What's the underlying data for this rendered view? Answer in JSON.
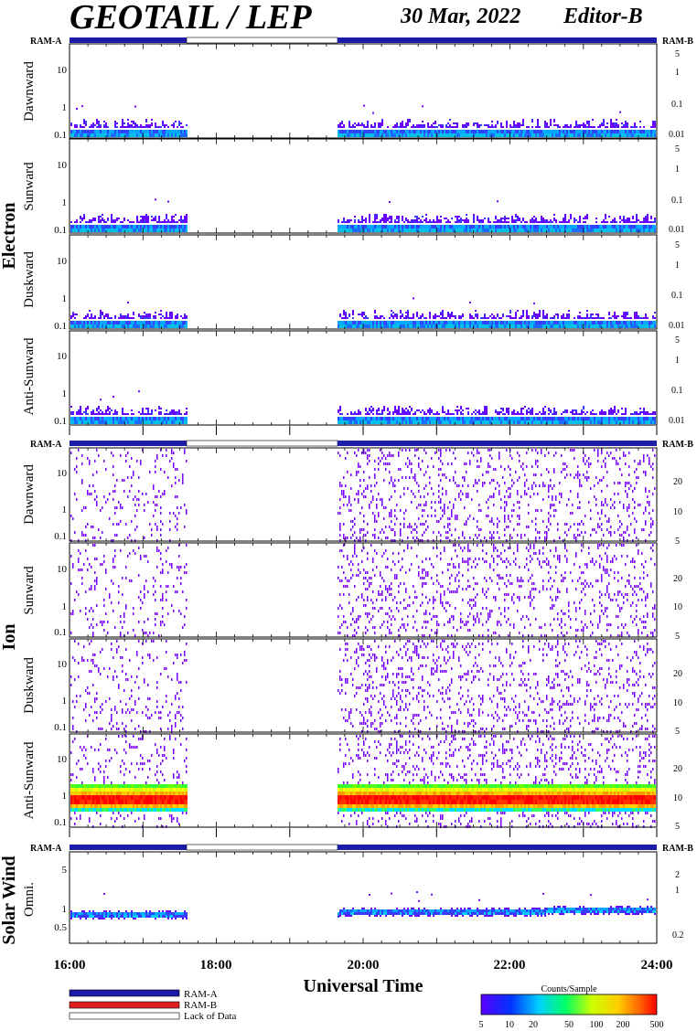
{
  "header": {
    "title": "GEOTAIL / LEP",
    "date": "30 Mar, 2022",
    "editor": "Editor-B"
  },
  "groups": {
    "electron": "Electron",
    "ion": "Ion",
    "solar_wind": "Solar Wind"
  },
  "ram_labels": {
    "left": "RAM-A",
    "right": "RAM-B"
  },
  "x_axis": {
    "label": "Universal Time",
    "ticks": [
      "16:00",
      "18:00",
      "20:00",
      "22:00",
      "24:00"
    ],
    "range_hours": [
      16,
      24
    ]
  },
  "legend": {
    "ram_a": "RAM-A",
    "ram_b": "RAM-B",
    "lack": "Lack of Data",
    "colors": {
      "ram_a": "#1c1ca8",
      "ram_b": "#e02020",
      "lack": "#ffffff"
    }
  },
  "colorbar": {
    "title": "Counts/Sample",
    "ticks": [
      "5",
      "10",
      "20",
      "50",
      "100",
      "200",
      "500"
    ],
    "colors": [
      "#5a00ff",
      "#0033ff",
      "#00d0ff",
      "#00ff66",
      "#ccff00",
      "#ffcc00",
      "#ff6600",
      "#ff0000"
    ]
  },
  "chart_data": [
    {
      "type": "heatmap",
      "species": "Electron",
      "direction": "Dawnward",
      "xlim": [
        16,
        24
      ],
      "ylim": [
        0.08,
        40
      ],
      "yscale": "log",
      "left_ticks": [
        "0.1",
        "1",
        "10"
      ],
      "right_ticks": [
        "0.01",
        "0.1",
        "1",
        "5"
      ],
      "data_gaps": [
        [
          17.6,
          19.65
        ]
      ],
      "ram_bar": [
        {
          "from": 16,
          "to": 17.6,
          "state": "RAM-A"
        },
        {
          "from": 17.6,
          "to": 19.65,
          "state": "Lack of Data"
        },
        {
          "from": 19.65,
          "to": 24,
          "state": "RAM-A"
        }
      ],
      "note": "low-energy band up to ~0.4, mostly blue-purple"
    },
    {
      "type": "heatmap",
      "species": "Electron",
      "direction": "Sunward",
      "xlim": [
        16,
        24
      ],
      "ylim": [
        0.08,
        40
      ],
      "yscale": "log",
      "left_ticks": [
        "0.1",
        "1",
        "10"
      ],
      "right_ticks": [
        "0.01",
        "0.1",
        "1",
        "5"
      ],
      "data_gaps": [
        [
          17.6,
          19.65
        ]
      ]
    },
    {
      "type": "heatmap",
      "species": "Electron",
      "direction": "Duskward",
      "xlim": [
        16,
        24
      ],
      "ylim": [
        0.08,
        40
      ],
      "yscale": "log",
      "left_ticks": [
        "0.1",
        "1",
        "10"
      ],
      "right_ticks": [
        "0.01",
        "0.1",
        "1",
        "5"
      ],
      "data_gaps": [
        [
          17.6,
          19.65
        ]
      ]
    },
    {
      "type": "heatmap",
      "species": "Electron",
      "direction": "Anti-Sunward",
      "xlim": [
        16,
        24
      ],
      "ylim": [
        0.08,
        40
      ],
      "yscale": "log",
      "left_ticks": [
        "0.1",
        "1",
        "10"
      ],
      "right_ticks": [
        "0.01",
        "0.1",
        "1",
        "5"
      ],
      "data_gaps": [
        [
          17.6,
          19.65
        ]
      ]
    },
    {
      "type": "heatmap",
      "species": "Ion",
      "direction": "Dawnward",
      "xlim": [
        16,
        24
      ],
      "ylim": [
        0.08,
        40
      ],
      "yscale": "log",
      "left_ticks": [
        "0.1",
        "1",
        "10"
      ],
      "right_ticks": [
        "5",
        "10",
        "20"
      ],
      "data_gaps": [
        [
          17.6,
          19.65
        ]
      ],
      "ram_bar": [
        {
          "from": 16,
          "to": 17.6,
          "state": "RAM-A"
        },
        {
          "from": 17.6,
          "to": 19.65,
          "state": "Lack of Data"
        },
        {
          "from": 19.65,
          "to": 24,
          "state": "RAM-A"
        }
      ],
      "note": "sparse purple speckle across all energies"
    },
    {
      "type": "heatmap",
      "species": "Ion",
      "direction": "Sunward",
      "xlim": [
        16,
        24
      ],
      "ylim": [
        0.08,
        40
      ],
      "yscale": "log",
      "left_ticks": [
        "0.1",
        "1",
        "10"
      ],
      "right_ticks": [
        "5",
        "10",
        "20"
      ],
      "data_gaps": [
        [
          17.6,
          19.65
        ]
      ]
    },
    {
      "type": "heatmap",
      "species": "Ion",
      "direction": "Duskward",
      "xlim": [
        16,
        24
      ],
      "ylim": [
        0.08,
        40
      ],
      "yscale": "log",
      "left_ticks": [
        "0.1",
        "1",
        "10"
      ],
      "right_ticks": [
        "5",
        "10",
        "20"
      ],
      "data_gaps": [
        [
          17.6,
          19.65
        ]
      ]
    },
    {
      "type": "heatmap",
      "species": "Ion",
      "direction": "Anti-Sunward",
      "xlim": [
        16,
        24
      ],
      "ylim": [
        0.08,
        40
      ],
      "yscale": "log",
      "left_ticks": [
        "0.1",
        "1",
        "10"
      ],
      "right_ticks": [
        "5",
        "10",
        "20"
      ],
      "data_gaps": [
        [
          17.6,
          19.65
        ]
      ],
      "note": "intense band ~0.35–1.6 (red core ~0.5–0.8)"
    },
    {
      "type": "heatmap",
      "species": "Solar Wind",
      "direction": "Omni.",
      "xlim": [
        16,
        24
      ],
      "ylim": [
        0.3,
        8
      ],
      "yscale": "log",
      "left_ticks": [
        "0.5",
        "1",
        "5"
      ],
      "right_ticks": [
        "0.2",
        "1",
        "2"
      ],
      "data_gaps": [
        [
          17.6,
          19.65
        ]
      ],
      "ram_bar": [
        {
          "from": 16,
          "to": 17.6,
          "state": "RAM-A"
        },
        {
          "from": 17.6,
          "to": 19.65,
          "state": "Lack of Data"
        },
        {
          "from": 19.65,
          "to": 24,
          "state": "RAM-A"
        }
      ],
      "note": "narrow band near 0.8–0.95"
    }
  ]
}
